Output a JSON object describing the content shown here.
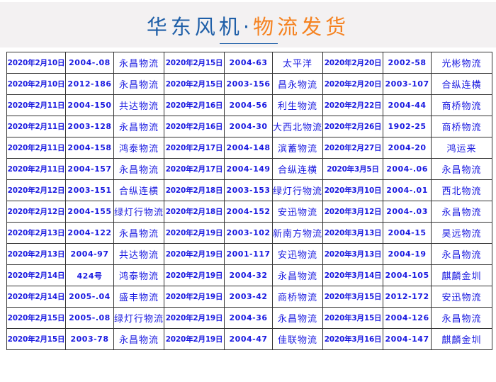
{
  "header": {
    "title_part1": "华东风机·",
    "title_part2": "物流发货",
    "colors": {
      "blue": "#1f5fa8",
      "orange": "#f58220",
      "text": "#1a1ae0"
    }
  },
  "rows": [
    [
      "2020年2月10日",
      "2004-.08",
      "永昌物流",
      "2020年2月15日",
      "2004-63",
      "太平洋",
      "2020年2月20日",
      "2002-58",
      "光彬物流"
    ],
    [
      "2020年2月10日",
      "2012-186",
      "永昌物流",
      "2020年2月15日",
      "2003-156",
      "昌永物流",
      "2020年2月20日",
      "2003-107",
      "合纵连横"
    ],
    [
      "2020年2月11日",
      "2004-150",
      "共达物流",
      "2020年2月16日",
      "2004-56",
      "利生物流",
      "2020年2月22日",
      "2004-44",
      "商桥物流"
    ],
    [
      "2020年2月11日",
      "2003-128",
      "永昌物流",
      "2020年2月16日",
      "2004-30",
      "大西北物流",
      "2020年2月26日",
      "1902-25",
      "商桥物流"
    ],
    [
      "2020年2月11日",
      "2004-158",
      "鸿泰物流",
      "2020年2月17日",
      "2004-148",
      "滨蓄物流",
      "2020年2月27日",
      "2004-20",
      "鸿运来"
    ],
    [
      "2020年2月11日",
      "2004-157",
      "永昌物流",
      "2020年2月17日",
      "2004-149",
      "合纵连横",
      "2020年3月5日",
      "2004-.06",
      "永昌物流"
    ],
    [
      "2020年2月12日",
      "2003-151",
      "合纵连横",
      "2020年2月18日",
      "2003-153",
      "绿灯行物流",
      "2020年3月10日",
      "2004-.01",
      "西北物流"
    ],
    [
      "2020年2月12日",
      "2004-155",
      "绿灯行物流",
      "2020年2月18日",
      "2004-152",
      "安迅物流",
      "2020年3月12日",
      "2004-.03",
      "永昌物流"
    ],
    [
      "2020年2月13日",
      "2004-122",
      "永昌物流",
      "2020年2月19日",
      "2003-102",
      "新南方物流",
      "2020年3月13日",
      "2004-15",
      "昊远物流"
    ],
    [
      "2020年2月13日",
      "2004-97",
      "共达物流",
      "2020年2月19日",
      "2001-117",
      "安迅物流",
      "2020年3月13日",
      "2004-19",
      "永昌物流"
    ],
    [
      "2020年2月14日",
      "424号",
      "鸿泰物流",
      "2020年2月19日",
      "2004-32",
      "永昌物流",
      "2020年3月14日",
      "2004-105",
      "麒麟金圳"
    ],
    [
      "2020年2月14日",
      "2005-.04",
      "盛丰物流",
      "2020年2月19日",
      "2003-42",
      "商桥物流",
      "2020年3月15日",
      "2012-172",
      "安迅物流"
    ],
    [
      "2020年2月15日",
      "2005-.08",
      "绿灯行物流",
      "2020年2月19日",
      "2004-36",
      "永昌物流",
      "2020年3月15日",
      "2004-126",
      "永昌物流"
    ],
    [
      "2020年2月15日",
      "2003-78",
      "永昌物流",
      "2020年2月19日",
      "2004-47",
      "佳联物流",
      "2020年3月16日",
      "2004-147",
      "麒麟金圳"
    ]
  ]
}
